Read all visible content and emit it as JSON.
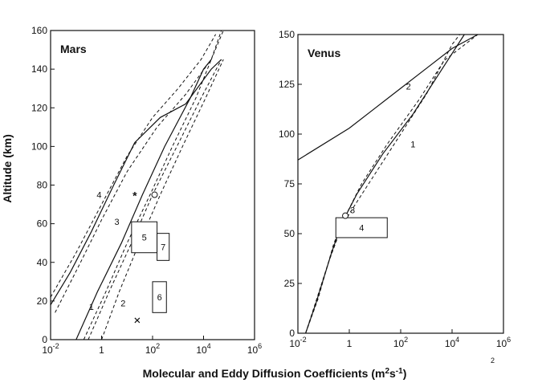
{
  "xlabel": "Molecular and Eddy Diffusion Coefficients (m",
  "xlabel_unit_sup": "2",
  "xlabel_unit_mid": "s",
  "xlabel_unit_sup2": "-1",
  "xlabel_close": ")",
  "ylabel": "Altitude (km)",
  "stray_mark": "2",
  "chart_data": [
    {
      "type": "line",
      "title": "Mars",
      "xscale": "log",
      "xlim": [
        0.01,
        1000000
      ],
      "ylim": [
        0,
        160
      ],
      "xticks": [
        {
          "value": 0.01,
          "base": "10",
          "exp": "-2"
        },
        {
          "value": 1,
          "base": "1",
          "exp": ""
        },
        {
          "value": 100,
          "base": "10",
          "exp": "2"
        },
        {
          "value": 10000,
          "base": "10",
          "exp": "4"
        },
        {
          "value": 1000000,
          "base": "10",
          "exp": "6"
        }
      ],
      "yticks": [
        "0",
        "20",
        "40",
        "60",
        "80",
        "100",
        "120",
        "140",
        "160"
      ],
      "series": [
        {
          "style": "solid",
          "points": [
            [
              0.01,
              18
            ],
            [
              0.06,
              35
            ],
            [
              0.4,
              56
            ],
            [
              3,
              80
            ],
            [
              20,
              102
            ],
            [
              200,
              115
            ],
            [
              2000,
              122
            ],
            [
              20000,
              140
            ],
            [
              50000,
              145
            ]
          ]
        },
        {
          "style": "solid",
          "points": [
            [
              0.1,
              0
            ],
            [
              0.7,
              25
            ],
            [
              6,
              50
            ],
            [
              40,
              75
            ],
            [
              300,
              100
            ],
            [
              3000,
              125
            ],
            [
              10000,
              140
            ],
            [
              20000,
              145
            ]
          ]
        },
        {
          "style": "dashed",
          "points": [
            [
              0.01,
              22
            ],
            [
              0.1,
              45
            ],
            [
              1,
              70
            ],
            [
              10,
              95
            ],
            [
              100,
              115
            ],
            [
              1000,
              130
            ],
            [
              8000,
              145
            ],
            [
              30000,
              158
            ]
          ]
        },
        {
          "style": "dashed",
          "points": [
            [
              0.015,
              14
            ],
            [
              0.15,
              40
            ],
            [
              1,
              62
            ],
            [
              10,
              87
            ],
            [
              150,
              110
            ],
            [
              2000,
              127
            ],
            [
              20000,
              145
            ],
            [
              60000,
              160
            ]
          ]
        },
        {
          "style": "dashed",
          "points": [
            [
              0.2,
              0
            ],
            [
              1.5,
              25
            ],
            [
              10,
              50
            ],
            [
              80,
              75
            ],
            [
              600,
              100
            ],
            [
              5000,
              125
            ],
            [
              20000,
              145
            ],
            [
              50000,
              160
            ]
          ]
        },
        {
          "style": "dashed",
          "points": [
            [
              0.3,
              0
            ],
            [
              2,
              25
            ],
            [
              15,
              50
            ],
            [
              100,
              75
            ],
            [
              900,
              100
            ],
            [
              8000,
              125
            ],
            [
              50000,
              145
            ]
          ]
        },
        {
          "style": "dashed",
          "points": [
            [
              1,
              0
            ],
            [
              5,
              25
            ],
            [
              30,
              50
            ],
            [
              200,
              75
            ],
            [
              1500,
              100
            ],
            [
              12000,
              125
            ],
            [
              60000,
              145
            ]
          ]
        }
      ],
      "curve_labels": [
        {
          "text": "1",
          "x": 0.4,
          "y": 17
        },
        {
          "text": "2",
          "x": 7,
          "y": 19
        },
        {
          "text": "3",
          "x": 4,
          "y": 61
        },
        {
          "text": "4",
          "x": 0.8,
          "y": 75
        }
      ],
      "boxes": [
        {
          "label": "5",
          "x0": 15,
          "x1": 150,
          "y0": 45,
          "y1": 61
        },
        {
          "label": "6",
          "x0": 100,
          "x1": 350,
          "y0": 14,
          "y1": 30
        },
        {
          "label": "7",
          "x0": 150,
          "x1": 450,
          "y0": 41,
          "y1": 55
        }
      ],
      "markers": [
        {
          "symbol": "asterisk",
          "x": 20,
          "y": 75
        },
        {
          "symbol": "circle",
          "x": 120,
          "y": 75
        },
        {
          "symbol": "x",
          "x": 25,
          "y": 10
        }
      ]
    },
    {
      "type": "line",
      "title": "Venus",
      "xscale": "log",
      "xlim": [
        0.01,
        1000000
      ],
      "ylim": [
        0,
        150
      ],
      "xticks": [
        {
          "value": 0.01,
          "base": "10",
          "exp": "-2"
        },
        {
          "value": 1,
          "base": "1",
          "exp": ""
        },
        {
          "value": 100,
          "base": "10",
          "exp": "2"
        },
        {
          "value": 10000,
          "base": "10",
          "exp": "4"
        },
        {
          "value": 1000000,
          "base": "10",
          "exp": "6"
        }
      ],
      "yticks": [
        "0",
        "25",
        "50",
        "75",
        "100",
        "125",
        "150"
      ],
      "series": [
        {
          "style": "solid",
          "points": [
            [
              0.01,
              87
            ],
            [
              1,
              103
            ],
            [
              10,
              113
            ],
            [
              100,
              123
            ],
            [
              1000,
              133
            ],
            [
              10000,
              143
            ],
            [
              100000,
              150
            ]
          ]
        },
        {
          "style": "solid",
          "points": [
            [
              0.02,
              0
            ],
            [
              0.05,
              15
            ],
            [
              0.2,
              40
            ],
            [
              0.5,
              55
            ],
            [
              2,
              70
            ],
            [
              20,
              90
            ],
            [
              300,
              110
            ],
            [
              3000,
              130
            ],
            [
              30000,
              150
            ]
          ]
        },
        {
          "style": "dashed",
          "points": [
            [
              0.02,
              0
            ],
            [
              0.06,
              17
            ],
            [
              0.25,
              45
            ],
            [
              0.6,
              57
            ],
            [
              3,
              75
            ],
            [
              30,
              95
            ],
            [
              500,
              117
            ],
            [
              5000,
              137
            ],
            [
              100000,
              150
            ]
          ]
        },
        {
          "style": "dashed",
          "points": [
            [
              0.02,
              0
            ],
            [
              0.04,
              12
            ],
            [
              0.15,
              35
            ],
            [
              0.4,
              50
            ],
            [
              1,
              60
            ],
            [
              10,
              80
            ],
            [
              100,
              100
            ],
            [
              1000,
              120
            ],
            [
              10000,
              145
            ],
            [
              20000,
              150
            ]
          ]
        }
      ],
      "curve_labels": [
        {
          "text": "1",
          "x": 300,
          "y": 95
        },
        {
          "text": "2",
          "x": 200,
          "y": 124
        }
      ],
      "boxes": [
        {
          "label": "4",
          "x0": 0.3,
          "x1": 30,
          "y0": 48,
          "y1": 58
        }
      ],
      "markers": [
        {
          "symbol": "circle",
          "label": "3",
          "x": 0.7,
          "y": 59
        }
      ]
    }
  ]
}
